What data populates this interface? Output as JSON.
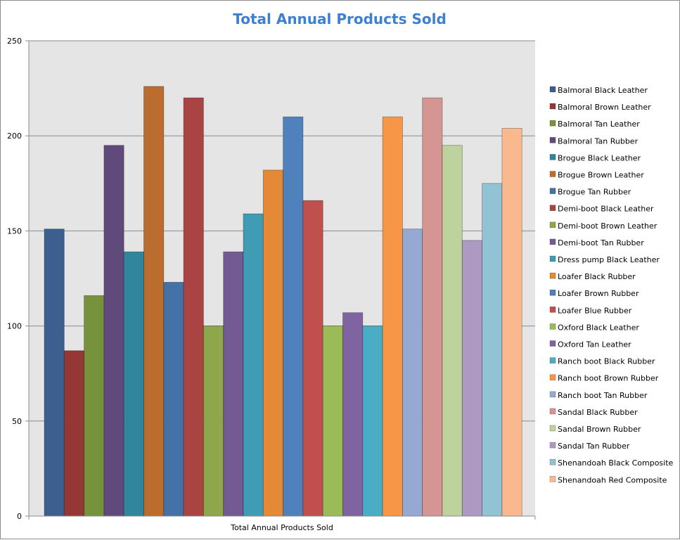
{
  "chart_data": {
    "type": "bar",
    "title": "Total Annual Products Sold",
    "categories": [
      "Total Annual Products Sold"
    ],
    "ylim": [
      0,
      250
    ],
    "yticks": [
      0,
      50,
      100,
      150,
      200,
      250
    ],
    "grid": true,
    "legend_position": "right",
    "series": [
      {
        "name": "Balmoral Black Leather",
        "color": "#3c5f8f",
        "values": [
          151
        ]
      },
      {
        "name": "Balmoral Brown Leather",
        "color": "#953735",
        "values": [
          87
        ]
      },
      {
        "name": "Balmoral Tan Leather",
        "color": "#76923c",
        "values": [
          116
        ]
      },
      {
        "name": "Balmoral Tan Rubber",
        "color": "#5f4a7b",
        "values": [
          195
        ]
      },
      {
        "name": "Brogue Black Leather",
        "color": "#31859c",
        "values": [
          139
        ]
      },
      {
        "name": "Brogue Brown Leather",
        "color": "#bb6c2f",
        "values": [
          226
        ]
      },
      {
        "name": "Brogue Tan Rubber",
        "color": "#4472a6",
        "values": [
          123
        ]
      },
      {
        "name": "Demi-boot Black Leather",
        "color": "#a94443",
        "values": [
          220
        ]
      },
      {
        "name": "Demi-boot Brown Leather",
        "color": "#8ea74d",
        "values": [
          100
        ]
      },
      {
        "name": "Demi-boot Tan Rubber",
        "color": "#735a92",
        "values": [
          139
        ]
      },
      {
        "name": "Dress pump Black Leather",
        "color": "#409cb5",
        "values": [
          159
        ]
      },
      {
        "name": "Loafer Black Rubber",
        "color": "#e48936",
        "values": [
          182
        ]
      },
      {
        "name": "Loafer Brown Rubber",
        "color": "#4f81bd",
        "values": [
          210
        ]
      },
      {
        "name": "Loafer Blue Rubber",
        "color": "#c0504d",
        "values": [
          166
        ]
      },
      {
        "name": "Oxford Black Leather",
        "color": "#9bbb59",
        "values": [
          100
        ]
      },
      {
        "name": "Oxford Tan Leather",
        "color": "#8064a2",
        "values": [
          107
        ]
      },
      {
        "name": "Ranch boot Black Rubber",
        "color": "#4bacc6",
        "values": [
          100
        ]
      },
      {
        "name": "Ranch boot Brown Rubber",
        "color": "#f79646",
        "values": [
          210
        ]
      },
      {
        "name": "Ranch boot Tan Rubber",
        "color": "#95a9d2",
        "values": [
          151
        ]
      },
      {
        "name": "Sandal Black Rubber",
        "color": "#d49593",
        "values": [
          220
        ]
      },
      {
        "name": "Sandal Brown Rubber",
        "color": "#bdd29c",
        "values": [
          195
        ]
      },
      {
        "name": "Sandal Tan Rubber",
        "color": "#ac9ac3",
        "values": [
          145
        ]
      },
      {
        "name": "Shenandoah Black Composite",
        "color": "#92c3d5",
        "values": [
          175
        ]
      },
      {
        "name": "Shenandoah Red Composite",
        "color": "#f9b88e",
        "values": [
          204
        ]
      }
    ]
  }
}
